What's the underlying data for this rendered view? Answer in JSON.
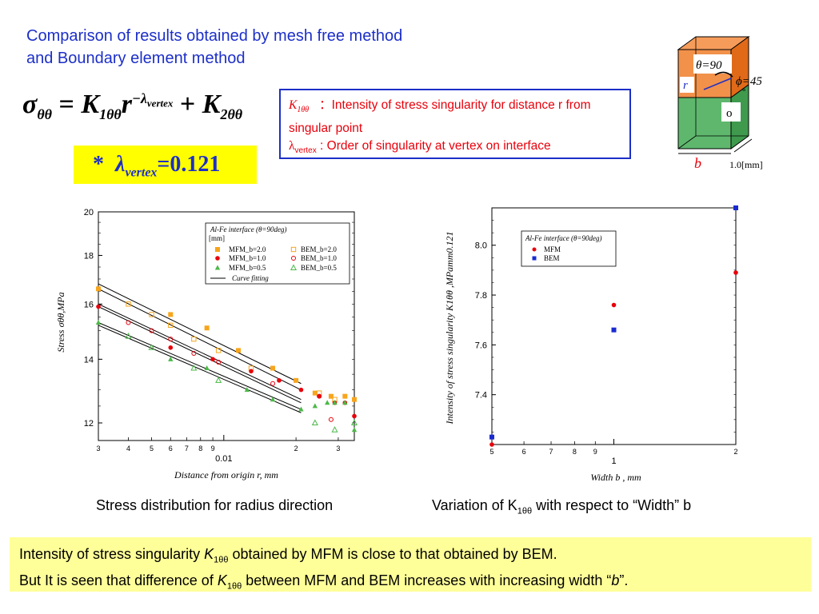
{
  "title_line1": "Comparison of results obtained by mesh free method",
  "title_line2": "and Boundary element method",
  "formula": {
    "sigma": "σ",
    "sigma_sub": "θθ",
    "eq": "=",
    "k1": "K",
    "k1_sub": "1θθ",
    "r": "r",
    "exponent": "−λ",
    "exponent_sub": "vertex",
    "plus": "+",
    "k2": "K",
    "k2_sub": "2θθ"
  },
  "lambda_box": {
    "star": "*",
    "lambda": "λ",
    "sub": "vertex",
    "value": "=0.121"
  },
  "definitions": {
    "k_symbol": "K",
    "k_sub": "1θθ",
    "k_text": "：Intensity of stress singularity for distance r from singular point",
    "lambda_symbol": "λ",
    "lambda_sub": "vertex",
    "lambda_text": " : Order of singularity at vertex on interface"
  },
  "cube": {
    "theta_label": "θ=90",
    "phi_label": "ϕ=45",
    "r_label": "r",
    "o_label": "o",
    "b_label": "b",
    "dim_label": "1.0[mm]",
    "colors": {
      "top": "#f07e2a",
      "bottom": "#4daf5d",
      "edge": "#000000"
    }
  },
  "chart_left_caption": "Stress distribution for radius direction",
  "chart_right_caption_pre": "Variation of K",
  "chart_right_caption_sub": "1θθ",
  "chart_right_caption_post": " with respect to “Width” b",
  "conclusion": {
    "l1_pre": "Intensity of stress singularity ",
    "l1_k": "K",
    "l1_sub": "1θθ",
    "l1_post": " obtained by MFM is close to that obtained by BEM.",
    "l2_pre": "But It is seen that difference of ",
    "l2_k": "K",
    "l2_sub": "1θθ",
    "l2_mid": " between MFM and BEM increases with increasing width “",
    "l2_b": "b",
    "l2_post": "”."
  },
  "chart_data": [
    {
      "type": "scatter",
      "xscale": "log",
      "yscale": "log",
      "xlim": [
        0.003,
        0.035
      ],
      "ylim": [
        11.5,
        20
      ],
      "xticks_minor_labels": [
        "3",
        "4",
        "5",
        "6",
        "7",
        "8",
        "9",
        "2",
        "3"
      ],
      "xtick_major_label": "0.01",
      "yticks": [
        12,
        14,
        16,
        18,
        20
      ],
      "ylabel": "Stress σθθ,MPa",
      "xlabel": "Distance from origin r, mm",
      "legend": {
        "position": "top-right",
        "header1": "Al-Fe interface (θ=90deg)",
        "header2": "[mm]",
        "entries": [
          {
            "label": "MFM_b=2.0",
            "marker": "filled-square",
            "color": "#f7a51c"
          },
          {
            "label": "BEM_b=2.0",
            "marker": "open-square",
            "color": "#f7a51c"
          },
          {
            "label": "MFM_b=1.0",
            "marker": "filled-circle",
            "color": "#e8000b"
          },
          {
            "label": "BEM_b=1.0",
            "marker": "open-circle",
            "color": "#e8000b"
          },
          {
            "label": "MFM_b=0.5",
            "marker": "filled-triangle",
            "color": "#4cb848"
          },
          {
            "label": "BEM_b=0.5",
            "marker": "open-triangle",
            "color": "#4cb848"
          },
          {
            "label": "Curve fitting",
            "marker": "line",
            "color": "#000000"
          }
        ]
      },
      "series": [
        {
          "name": "MFM_b=2.0",
          "x": [
            0.003,
            0.006,
            0.0085,
            0.0115,
            0.016,
            0.02,
            0.024,
            0.028,
            0.032,
            0.035
          ],
          "y": [
            16.6,
            15.6,
            15.1,
            14.3,
            13.7,
            13.3,
            12.9,
            12.8,
            12.8,
            12.7
          ]
        },
        {
          "name": "BEM_b=2.0",
          "x": [
            0.004,
            0.005,
            0.006,
            0.0075,
            0.0095,
            0.013,
            0.025,
            0.029
          ],
          "y": [
            16.0,
            15.6,
            15.2,
            14.7,
            14.3,
            13.7,
            12.9,
            12.7
          ]
        },
        {
          "name": "MFM_b=1.0",
          "x": [
            0.003,
            0.006,
            0.009,
            0.013,
            0.017,
            0.021,
            0.025,
            0.029,
            0.032,
            0.035
          ],
          "y": [
            15.9,
            14.4,
            14.0,
            13.6,
            13.3,
            13.0,
            12.8,
            12.6,
            12.6,
            12.2
          ]
        },
        {
          "name": "BEM_b=1.0",
          "x": [
            0.004,
            0.005,
            0.006,
            0.0075,
            0.0095,
            0.016,
            0.025,
            0.028
          ],
          "y": [
            15.3,
            15.0,
            14.7,
            14.2,
            13.9,
            13.2,
            12.8,
            12.1
          ]
        },
        {
          "name": "MFM_b=0.5",
          "x": [
            0.003,
            0.006,
            0.0085,
            0.0125,
            0.016,
            0.021,
            0.024,
            0.027,
            0.029,
            0.032,
            0.035
          ],
          "y": [
            15.3,
            14.0,
            13.7,
            13.0,
            12.7,
            12.4,
            12.5,
            12.6,
            12.6,
            12.6,
            11.8
          ]
        },
        {
          "name": "BEM_b=0.5",
          "x": [
            0.004,
            0.005,
            0.0075,
            0.0095,
            0.024,
            0.029,
            0.035
          ],
          "y": [
            14.8,
            14.4,
            13.7,
            13.3,
            12.0,
            11.8,
            12.0
          ]
        }
      ],
      "fit_lines": [
        {
          "x": [
            0.003,
            0.021
          ],
          "y": [
            16.8,
            13.2
          ]
        },
        {
          "x": [
            0.003,
            0.021
          ],
          "y": [
            16.6,
            13.0
          ]
        },
        {
          "x": [
            0.003,
            0.021
          ],
          "y": [
            16.0,
            12.7
          ]
        },
        {
          "x": [
            0.003,
            0.021
          ],
          "y": [
            15.9,
            12.6
          ]
        },
        {
          "x": [
            0.003,
            0.021
          ],
          "y": [
            15.3,
            12.4
          ]
        },
        {
          "x": [
            0.003,
            0.021
          ],
          "y": [
            15.2,
            12.3
          ]
        }
      ]
    },
    {
      "type": "scatter",
      "xscale": "log",
      "xlim": [
        0.5,
        2.0
      ],
      "ylim": [
        7.2,
        8.15
      ],
      "xticks_minor_labels": [
        "5",
        "6",
        "7",
        "8",
        "9",
        "2"
      ],
      "xtick_major_label": "1",
      "yticks": [
        7.4,
        7.6,
        7.8,
        8.0
      ],
      "ylabel": "Intensity of stress singularity K1θθ ,MPamm0.121",
      "xlabel": "Width b , mm",
      "legend": {
        "position": "top-left",
        "header": "Al-Fe interface (θ=90deg)",
        "entries": [
          {
            "label": "MFM",
            "marker": "filled-circle",
            "color": "#e8000b"
          },
          {
            "label": "BEM",
            "marker": "filled-square",
            "color": "#1a2bd0"
          }
        ]
      },
      "series": [
        {
          "name": "MFM",
          "x": [
            0.5,
            1.0,
            2.0
          ],
          "y": [
            7.2,
            7.76,
            7.89
          ]
        },
        {
          "name": "BEM",
          "x": [
            0.5,
            1.0,
            2.0
          ],
          "y": [
            7.23,
            7.66,
            8.15
          ]
        }
      ]
    }
  ]
}
